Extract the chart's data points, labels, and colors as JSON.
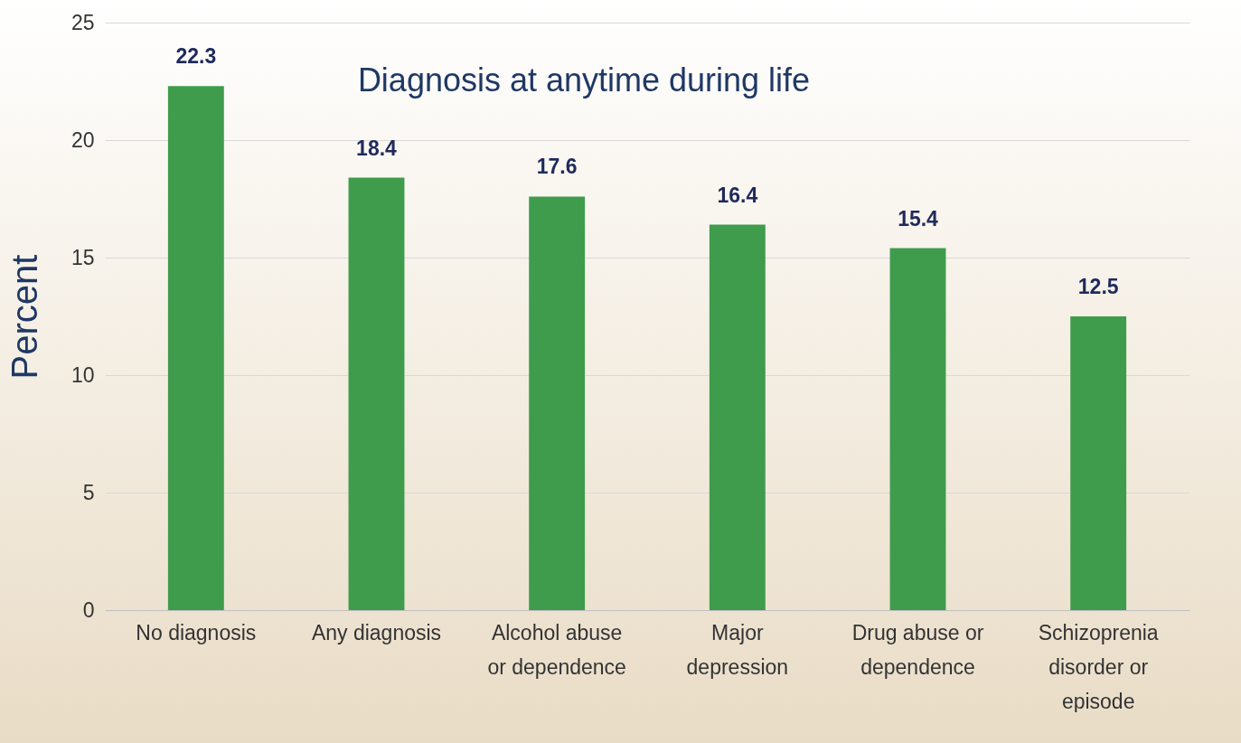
{
  "chart_data": {
    "type": "bar",
    "title": "Diagnosis at anytime during life",
    "ylabel": "Percent",
    "categories": [
      "No diagnosis",
      "Any diagnosis",
      "Alcohol abuse or dependence",
      "Major depression",
      "Drug abuse or dependence",
      "Schizoprenia disorder or episode"
    ],
    "values": [
      22.3,
      18.4,
      17.6,
      16.4,
      15.4,
      12.5
    ],
    "color": "#3f9c4c",
    "ylim": [
      0,
      25
    ],
    "yticks": [
      0,
      5,
      10,
      15,
      20,
      25
    ],
    "grid": "y",
    "data_labels": true
  }
}
